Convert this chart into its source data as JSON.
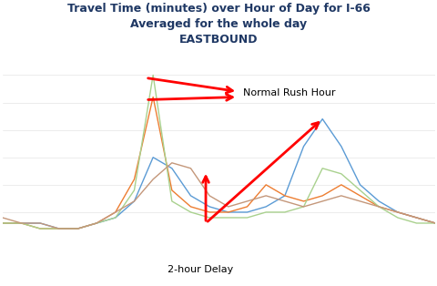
{
  "title_line1": "Travel Time (minutes) over Hour of Day for I-66",
  "title_line2": "Averaged for the whole day",
  "title_line3": "EASTBOUND",
  "title_fontsize": 9,
  "hours": [
    0,
    1,
    2,
    3,
    4,
    5,
    6,
    7,
    8,
    9,
    10,
    11,
    12,
    13,
    14,
    15,
    16,
    17,
    18,
    19,
    20,
    21,
    22,
    23
  ],
  "lines": [
    {
      "color": "#5B9BD5",
      "name": "blue",
      "values": [
        3,
        3,
        3,
        2,
        2,
        3,
        4,
        7,
        15,
        13,
        8,
        6,
        5,
        5,
        6,
        8,
        17,
        22,
        17,
        10,
        7,
        5,
        4,
        3
      ]
    },
    {
      "color": "#ED7D31",
      "name": "orange",
      "values": [
        3,
        3,
        2,
        2,
        2,
        3,
        5,
        11,
        26,
        9,
        6,
        5,
        5,
        6,
        10,
        8,
        7,
        8,
        10,
        8,
        6,
        5,
        4,
        3
      ]
    },
    {
      "color": "#A9D18E",
      "name": "green",
      "values": [
        3,
        3,
        2,
        2,
        2,
        3,
        4,
        9,
        30,
        7,
        5,
        4,
        4,
        4,
        5,
        5,
        6,
        13,
        12,
        9,
        6,
        4,
        3,
        3
      ]
    },
    {
      "color": "#C4977A",
      "name": "brown",
      "values": [
        4,
        3,
        3,
        2,
        2,
        3,
        5,
        7,
        11,
        14,
        13,
        8,
        6,
        7,
        8,
        7,
        6,
        7,
        8,
        7,
        6,
        5,
        4,
        3
      ]
    }
  ],
  "figsize": [
    4.81,
    3.14
  ],
  "dpi": 100,
  "bg_color": "#FFFFFF",
  "ylim_min": -8,
  "ylim_max": 35,
  "xlim_min": 0,
  "xlim_max": 23
}
